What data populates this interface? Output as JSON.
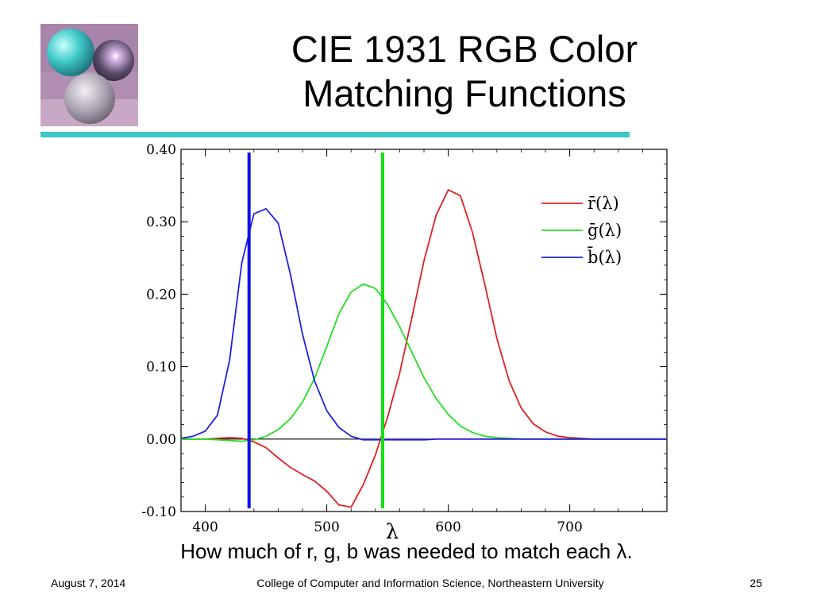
{
  "slide": {
    "title_line1": "CIE 1931 RGB Color",
    "title_line2": "Matching Functions",
    "caption": "How much of r, g, b was needed to match each λ.",
    "footer_date": "August 7, 2014",
    "footer_center": "College of Computer and Information Science, Northeastern University",
    "page_number": "25",
    "logo_icon": "glass-spheres-logo-icon",
    "accent_color": "#3cc8c8"
  },
  "chart_data": {
    "type": "line",
    "xlabel": "λ",
    "ylabel": "",
    "xlim": [
      380,
      780
    ],
    "ylim": [
      -0.1,
      0.4
    ],
    "x_ticks": [
      400,
      500,
      600,
      700
    ],
    "y_ticks": [
      -0.1,
      0.0,
      0.1,
      0.2,
      0.3,
      0.4
    ],
    "y_tick_labels": [
      "-0.10",
      "0.00",
      "0.10",
      "0.20",
      "0.30",
      "0.40"
    ],
    "grid": false,
    "legend_position": "top-right",
    "x": [
      380,
      390,
      400,
      410,
      420,
      430,
      440,
      450,
      460,
      470,
      480,
      490,
      500,
      510,
      520,
      530,
      540,
      550,
      560,
      570,
      580,
      590,
      600,
      610,
      620,
      630,
      640,
      650,
      660,
      670,
      680,
      690,
      700,
      710,
      720,
      730,
      740,
      750,
      760,
      770,
      780
    ],
    "series": [
      {
        "name": "r̄(λ)",
        "color": "#e02020",
        "values": [
          0.0,
          0.0,
          0.0,
          0.001,
          0.002,
          0.001,
          -0.004,
          -0.012,
          -0.026,
          -0.039,
          -0.049,
          -0.058,
          -0.072,
          -0.091,
          -0.094,
          -0.063,
          -0.022,
          0.03,
          0.091,
          0.167,
          0.246,
          0.309,
          0.344,
          0.336,
          0.285,
          0.214,
          0.139,
          0.081,
          0.043,
          0.021,
          0.01,
          0.004,
          0.002,
          0.001,
          0.0,
          0.0,
          0.0,
          0.0,
          0.0,
          0.0,
          0.0
        ]
      },
      {
        "name": "ḡ(λ)",
        "color": "#22e022",
        "values": [
          0.0,
          0.0,
          0.0,
          -0.001,
          -0.002,
          -0.003,
          -0.001,
          0.004,
          0.013,
          0.028,
          0.051,
          0.084,
          0.128,
          0.173,
          0.203,
          0.214,
          0.208,
          0.186,
          0.155,
          0.12,
          0.085,
          0.056,
          0.034,
          0.018,
          0.009,
          0.004,
          0.002,
          0.001,
          0.0,
          0.0,
          0.0,
          0.0,
          0.0,
          0.0,
          0.0,
          0.0,
          0.0,
          0.0,
          0.0,
          0.0,
          0.0
        ]
      },
      {
        "name": "b̄(λ)",
        "color": "#2020e0",
        "values": [
          0.001,
          0.004,
          0.011,
          0.033,
          0.109,
          0.243,
          0.311,
          0.318,
          0.298,
          0.228,
          0.145,
          0.08,
          0.039,
          0.016,
          0.004,
          -0.001,
          -0.001,
          -0.001,
          -0.001,
          -0.001,
          -0.001,
          0.0,
          0.0,
          0.0,
          0.0,
          0.0,
          0.0,
          0.0,
          0.0,
          0.0,
          0.0,
          0.0,
          0.0,
          0.0,
          0.0,
          0.0,
          0.0,
          0.0,
          0.0,
          0.0,
          0.0
        ]
      }
    ],
    "markers": [
      {
        "name": "blue-primary-marker",
        "x": 436,
        "color": "#1010e8"
      },
      {
        "name": "green-primary-marker",
        "x": 546,
        "color": "#10e010"
      }
    ]
  }
}
